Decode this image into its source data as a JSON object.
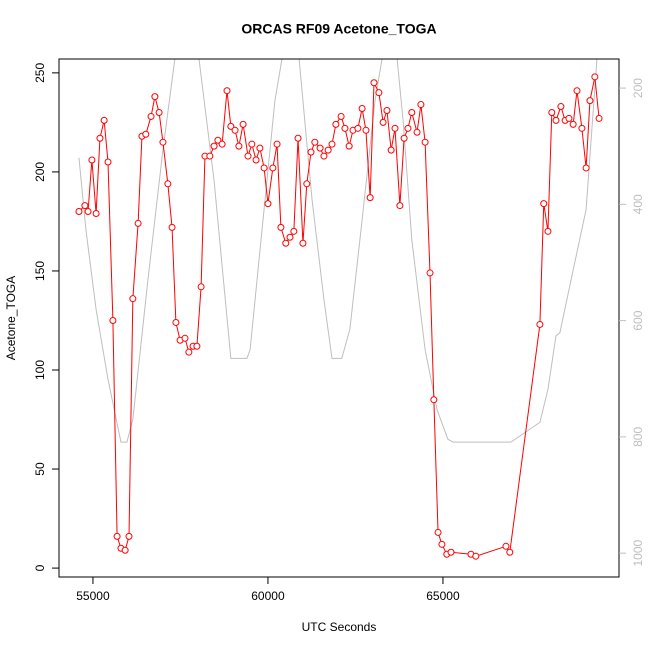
{
  "chart_data": {
    "type": "line",
    "title": "ORCAS RF09 Acetone_TOGA",
    "x_label": "UTC Seconds",
    "y_label": "Acetone_TOGA",
    "xlim": [
      54030,
      70030
    ],
    "xticks": [
      55000,
      60000,
      65000
    ],
    "ylim": [
      -4.5,
      257
    ],
    "yticks": [
      0,
      50,
      100,
      150,
      200,
      250
    ],
    "y2lim": [
      1041,
      150
    ],
    "y2ticks": [
      200,
      400,
      600,
      800,
      1000
    ],
    "y2_color": "#bebebe",
    "series": [
      {
        "color": "#bebebe",
        "axis": "y2",
        "markers": false,
        "x": [
          54600,
          54800,
          55090,
          55430,
          55800,
          55970,
          56140,
          56570,
          57000,
          57340,
          57680,
          58030,
          58460,
          58940,
          59400,
          59490,
          59830,
          60200,
          60400,
          60640,
          60890,
          61260,
          61600,
          61830,
          62110,
          62340,
          62690,
          63060,
          63260,
          63470,
          63690,
          63860,
          64110,
          64490,
          64830,
          65140,
          65290,
          66940,
          67770,
          68000,
          68230,
          68340,
          68770,
          69090,
          69400
        ],
        "values": [
          320,
          444,
          581,
          701,
          809,
          809,
          770,
          530,
          306,
          150,
          110,
          150,
          359,
          665,
          665,
          650,
          444,
          221,
          150,
          125,
          150,
          392,
          564,
          665,
          665,
          615,
          427,
          221,
          150,
          125,
          150,
          255,
          461,
          650,
          753,
          804,
          809,
          809,
          775,
          718,
          626,
          621,
          499,
          409,
          150
        ]
      },
      {
        "color": "#ff0000",
        "axis": "y",
        "markers": true,
        "x": [
          54600,
          54770,
          54860,
          54970,
          55090,
          55200,
          55320,
          55430,
          55570,
          55690,
          55800,
          55920,
          56030,
          56140,
          56290,
          56400,
          56510,
          56660,
          56770,
          56890,
          57000,
          57140,
          57260,
          57370,
          57490,
          57630,
          57740,
          57860,
          57970,
          58090,
          58200,
          58340,
          58460,
          58570,
          58690,
          58830,
          58940,
          59060,
          59170,
          59290,
          59430,
          59540,
          59660,
          59770,
          59890,
          60000,
          60140,
          60260,
          60370,
          60510,
          60630,
          60740,
          60860,
          61000,
          61110,
          61230,
          61340,
          61490,
          61600,
          61720,
          61830,
          61940,
          62090,
          62200,
          62320,
          62430,
          62570,
          62690,
          62800,
          62920,
          63030,
          63170,
          63290,
          63400,
          63520,
          63630,
          63770,
          63890,
          64000,
          64110,
          64260,
          64370,
          64490,
          64630,
          64740,
          64860,
          64970,
          65110,
          65230,
          65800,
          65940,
          66800,
          66910,
          67770,
          67880,
          68000,
          68110,
          68230,
          68370,
          68490,
          68600,
          68720,
          68830,
          68970,
          69090,
          69200,
          69340,
          69460
        ],
        "values": [
          180,
          183,
          180,
          206,
          179,
          217,
          226,
          205,
          125,
          16,
          10,
          9,
          16,
          136,
          174,
          218,
          219,
          228,
          238,
          230,
          215,
          194,
          172,
          124,
          115,
          116,
          109,
          112,
          112,
          142,
          208,
          208,
          213,
          216,
          214,
          241,
          223,
          221,
          213,
          224,
          208,
          214,
          206,
          212,
          202,
          184,
          202,
          214,
          172,
          164,
          167,
          170,
          217,
          164,
          194,
          210,
          215,
          212,
          208,
          211,
          214,
          224,
          228,
          222,
          213,
          221,
          222,
          232,
          221,
          187,
          245,
          240,
          225,
          231,
          211,
          222,
          183,
          217,
          222,
          230,
          220,
          234,
          215,
          149,
          85,
          18,
          12,
          7,
          8,
          7,
          6,
          11,
          8,
          123,
          184,
          170,
          230,
          226,
          233,
          226,
          227,
          224,
          241,
          222,
          202,
          236,
          248,
          227
        ]
      }
    ]
  }
}
